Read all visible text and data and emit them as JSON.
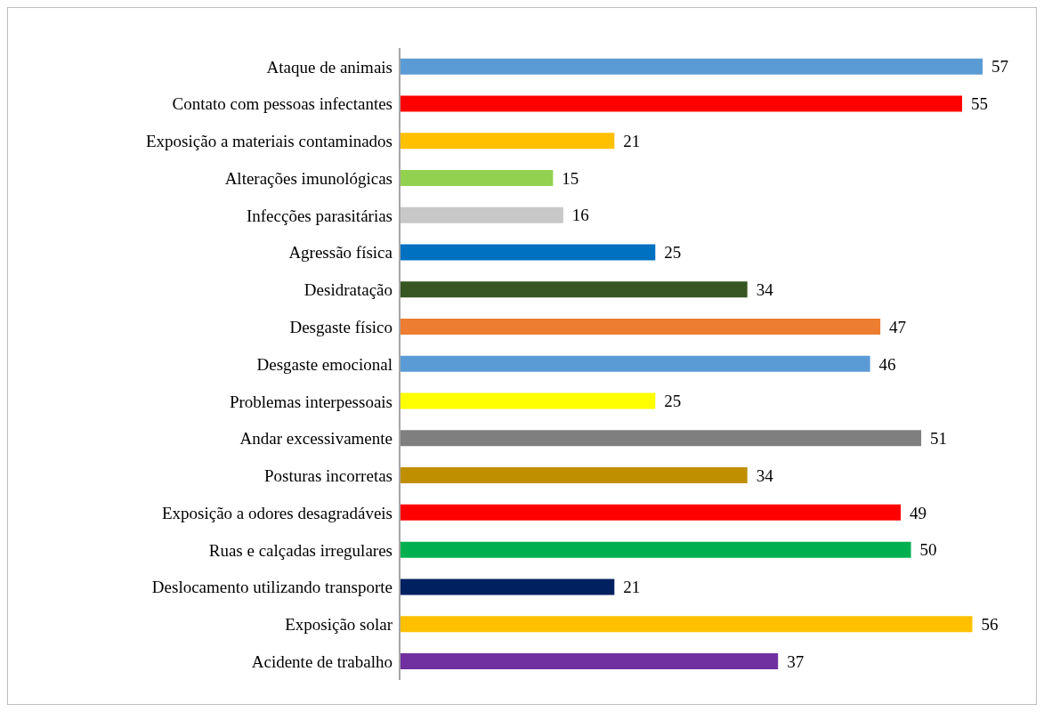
{
  "chart_data": {
    "type": "bar",
    "orientation": "horizontal",
    "categories": [
      "Ataque de animais",
      "Contato com pessoas infectantes",
      "Exposição a materiais contaminados",
      "Alterações imunológicas",
      "Infecções parasitárias",
      "Agressão física",
      "Desidratação",
      "Desgaste físico",
      "Desgaste emocional",
      "Problemas interpessoais",
      "Andar excessivamente",
      "Posturas incorretas",
      "Exposição a odores desagradáveis",
      "Ruas e calçadas irregulares",
      "Deslocamento utilizando transporte",
      "Exposição solar",
      "Acidente de trabalho"
    ],
    "values": [
      57,
      55,
      21,
      15,
      16,
      25,
      34,
      47,
      46,
      25,
      51,
      34,
      49,
      50,
      21,
      56,
      37
    ],
    "colors": [
      "#5b9bd5",
      "#ff0000",
      "#ffc000",
      "#92d050",
      "#c8c8c8",
      "#0070c0",
      "#375623",
      "#ed7d31",
      "#5b9bd5",
      "#ffff00",
      "#7f7f7f",
      "#bf8f00",
      "#ff0000",
      "#00b050",
      "#002060",
      "#ffc000",
      "#7030a0"
    ],
    "data_labels": true
  }
}
